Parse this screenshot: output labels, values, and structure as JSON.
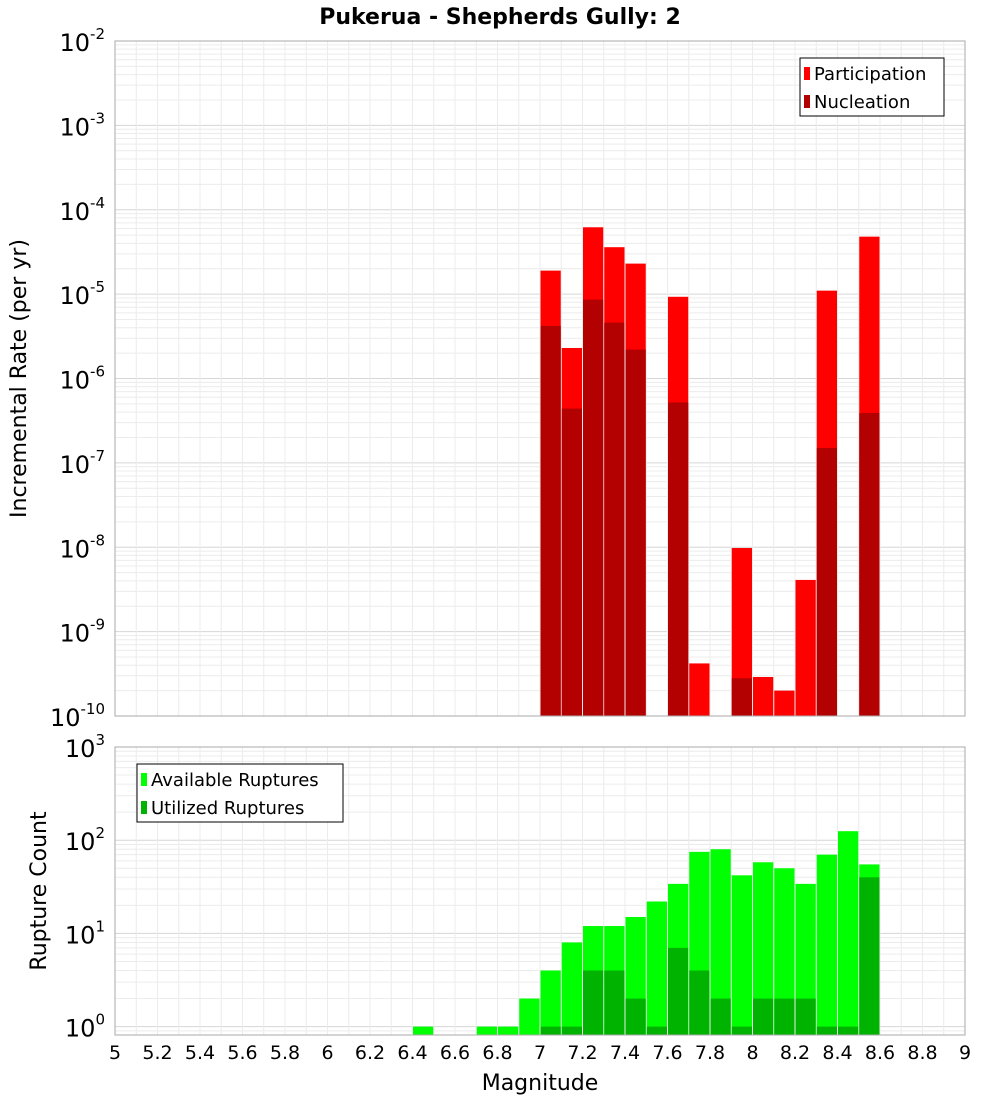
{
  "chart_data": {
    "title": "Pukerua - Shepherds Gully: 2",
    "xlabel": "Magnitude",
    "xlim": [
      5,
      9
    ],
    "x_ticks": [
      "5",
      "5.2",
      "5.4",
      "5.6",
      "5.8",
      "6",
      "6.2",
      "6.4",
      "6.6",
      "6.8",
      "7",
      "7.2",
      "7.4",
      "7.6",
      "7.8",
      "8",
      "8.2",
      "8.4",
      "8.6",
      "8.8",
      "9"
    ],
    "bin_centers": [
      6.45,
      6.75,
      6.85,
      6.95,
      7.05,
      7.15,
      7.25,
      7.35,
      7.45,
      7.55,
      7.65,
      7.75,
      7.85,
      7.95,
      8.05,
      8.15,
      8.25,
      8.35,
      8.45,
      8.55
    ],
    "panels": [
      {
        "type": "bar",
        "ylabel": "Incremental Rate (per yr)",
        "yscale": "log",
        "ylim_exp": [
          -10,
          -2
        ],
        "y_ticks": [
          {
            "base": "10",
            "exp": "-2"
          },
          {
            "base": "10",
            "exp": "-3"
          },
          {
            "base": "10",
            "exp": "-4"
          },
          {
            "base": "10",
            "exp": "-5"
          },
          {
            "base": "10",
            "exp": "-6"
          },
          {
            "base": "10",
            "exp": "-7"
          },
          {
            "base": "10",
            "exp": "-8"
          },
          {
            "base": "10",
            "exp": "-9"
          },
          {
            "base": "10",
            "exp": "-10"
          }
        ],
        "legend": {
          "placement": "top-right",
          "entries": [
            {
              "label": "Participation",
              "color": "#ff0000"
            },
            {
              "label": "Nucleation",
              "color": "#b30000"
            }
          ]
        },
        "series": [
          {
            "name": "Participation",
            "color": "#ff0000",
            "values": [
              null,
              null,
              null,
              null,
              1.9e-05,
              2.3e-06,
              6.2e-05,
              3.6e-05,
              2.3e-05,
              null,
              9.3e-06,
              4.2e-10,
              null,
              9.8e-09,
              2.9e-10,
              2e-10,
              4.1e-09,
              1.1e-05,
              null,
              4.8e-05
            ]
          },
          {
            "name": "Nucleation",
            "color": "#b30000",
            "values": [
              null,
              null,
              null,
              null,
              4.2e-06,
              4.4e-07,
              8.6e-06,
              4.6e-06,
              2.2e-06,
              null,
              5.2e-07,
              null,
              null,
              2.8e-10,
              null,
              null,
              null,
              1.5e-07,
              null,
              3.9e-07
            ]
          }
        ]
      },
      {
        "type": "bar",
        "ylabel": "Rupture Count",
        "yscale": "log",
        "ylim_exp": [
          -0.09,
          3
        ],
        "y_ticks": [
          {
            "base": "10",
            "exp": "3"
          },
          {
            "base": "10",
            "exp": "2"
          },
          {
            "base": "10",
            "exp": "1"
          },
          {
            "base": "10",
            "exp": "0"
          }
        ],
        "legend": {
          "placement": "top-left",
          "entries": [
            {
              "label": "Available Ruptures",
              "color": "#00ff00"
            },
            {
              "label": "Utilized Ruptures",
              "color": "#00b300"
            }
          ]
        },
        "series": [
          {
            "name": "Available Ruptures",
            "color": "#00ff00",
            "values": [
              1,
              1,
              1,
              2,
              4,
              8,
              12,
              12,
              15,
              22,
              34,
              75,
              80,
              42,
              58,
              50,
              34,
              70,
              125,
              55
            ]
          },
          {
            "name": "Utilized Ruptures",
            "color": "#00b300",
            "values": [
              null,
              null,
              null,
              null,
              1,
              1,
              4,
              4,
              2,
              1,
              7,
              4,
              2,
              1,
              2,
              2,
              2,
              1,
              1,
              40
            ]
          }
        ]
      }
    ]
  }
}
